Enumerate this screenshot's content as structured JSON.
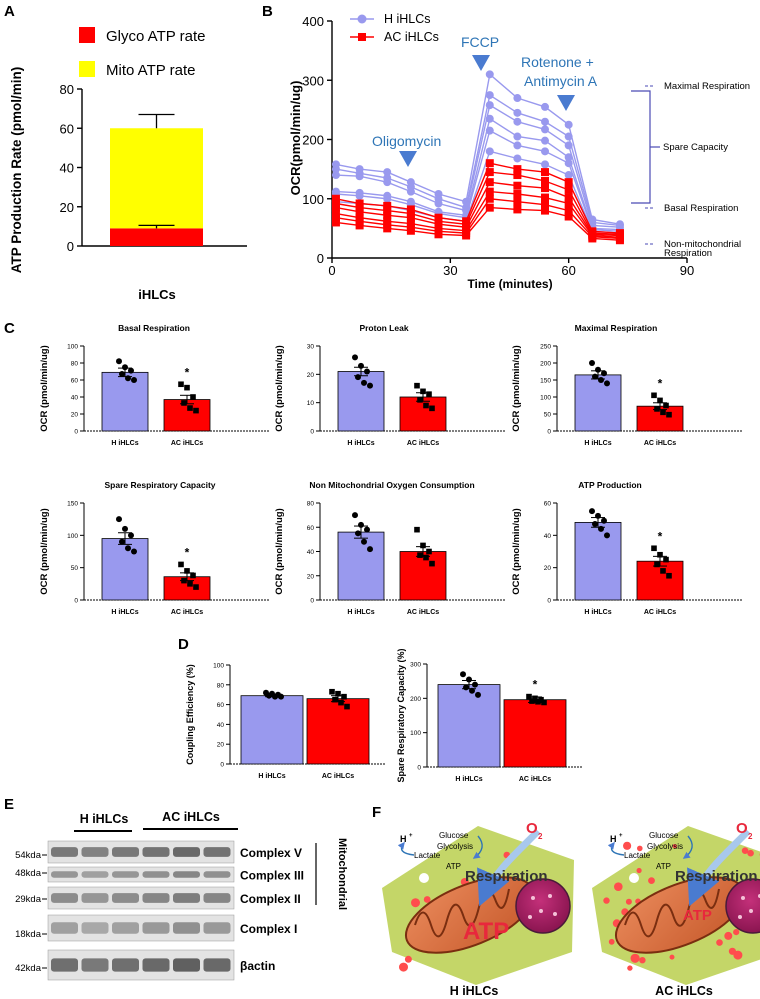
{
  "panels": {
    "a": "A",
    "b": "B",
    "c": "C",
    "d": "D",
    "e": "E",
    "f": "F"
  },
  "colors": {
    "h": "#9999ee",
    "ac": "#ff0000",
    "glyco": "#ff0000",
    "mito": "#ffff00",
    "annot": "#2e75b6"
  },
  "panel_a": {
    "legend": [
      "Glyco ATP rate",
      "Mito ATP rate"
    ],
    "ylabel": "ATP Production Rate (pmol/min)",
    "xlabel": "iHLCs",
    "yticks": [
      "0",
      "20",
      "40",
      "60",
      "80"
    ]
  },
  "panel_b": {
    "legend": [
      "H iHLCs",
      "AC iHLCs"
    ],
    "ylabel": "OCR(pmol/min/ug)",
    "xlabel": "Time (minutes)",
    "yticks": [
      "0",
      "100",
      "200",
      "300",
      "400"
    ],
    "xticks": [
      "0",
      "30",
      "60",
      "90"
    ],
    "injections": [
      "Oligomycin",
      "FCCP",
      "Rotenone +",
      "Antimycin A"
    ],
    "annotations": [
      "Maximal Respiration",
      "Spare Capacity",
      "Basal Respiration",
      "Non-mitochondrial",
      "Respiration"
    ]
  },
  "groups": [
    "H iHLCs",
    "AC iHLCs"
  ],
  "ocr_label": "OCR (pmol/min/ug)",
  "sig": "*",
  "panel_e": {
    "header": [
      "H iHLCs",
      "AC iHLCs"
    ],
    "markers": [
      "54kda",
      "48kda",
      "29kda",
      "18kda",
      "42kda"
    ],
    "bands": [
      "Complex V",
      "Complex III",
      "Complex II",
      "Complex I",
      "βactin"
    ],
    "group_label": "Mitochondrial"
  },
  "panel_f": {
    "cells": [
      {
        "caption": "H iHLCs",
        "atp": "ATP"
      },
      {
        "caption": "AC iHLCs",
        "atp": "ATP"
      }
    ],
    "labels": {
      "h_plus": "H",
      "glucose": "Glucose",
      "glycolysis": "Glycolysis",
      "lactate": "Lactate",
      "atp_small": "ATP",
      "respiration": "Respiration",
      "o2": "O",
      "o2_sub": "2"
    }
  },
  "chart_data": [
    {
      "id": "A",
      "type": "bar",
      "title": "",
      "categories": [
        "iHLCs"
      ],
      "series": [
        {
          "name": "Glyco ATP rate",
          "values": [
            9
          ]
        },
        {
          "name": "Mito ATP rate",
          "values": [
            51
          ]
        }
      ],
      "error": [
        7
      ],
      "xlabel": "iHLCs",
      "ylabel": "ATP Production Rate (pmol/min)",
      "ylim": [
        0,
        80
      ],
      "stacked": true
    },
    {
      "id": "B",
      "type": "line",
      "title": "",
      "x": [
        1,
        7,
        14,
        20,
        27,
        34,
        40,
        47,
        54,
        60,
        66,
        73
      ],
      "series": [
        {
          "name": "H iHLCs",
          "values": [
            158,
            150,
            145,
            128,
            108,
            95,
            310,
            270,
            255,
            225,
            65,
            57
          ]
        },
        {
          "name": "H iHLCs",
          "values": [
            150,
            143,
            135,
            120,
            100,
            85,
            275,
            245,
            230,
            205,
            60,
            55
          ]
        },
        {
          "name": "H iHLCs",
          "values": [
            140,
            138,
            128,
            112,
            92,
            80,
            258,
            230,
            217,
            190,
            55,
            52
          ]
        },
        {
          "name": "H iHLCs",
          "values": [
            112,
            110,
            105,
            95,
            78,
            72,
            235,
            205,
            198,
            170,
            50,
            48
          ]
        },
        {
          "name": "H iHLCs",
          "values": [
            108,
            105,
            100,
            90,
            75,
            68,
            215,
            190,
            180,
            160,
            48,
            45
          ]
        },
        {
          "name": "H iHLCs",
          "values": [
            95,
            92,
            88,
            80,
            68,
            62,
            180,
            168,
            158,
            140,
            45,
            42
          ]
        },
        {
          "name": "AC iHLCs",
          "values": [
            100,
            92,
            88,
            82,
            68,
            62,
            160,
            150,
            145,
            128,
            45,
            42
          ]
        },
        {
          "name": "AC iHLCs",
          "values": [
            92,
            85,
            80,
            75,
            62,
            57,
            145,
            140,
            130,
            115,
            42,
            40
          ]
        },
        {
          "name": "AC iHLCs",
          "values": [
            85,
            78,
            72,
            68,
            57,
            52,
            128,
            122,
            118,
            102,
            40,
            38
          ]
        },
        {
          "name": "AC iHLCs",
          "values": [
            75,
            68,
            62,
            58,
            50,
            46,
            112,
            108,
            102,
            92,
            38,
            35
          ]
        },
        {
          "name": "AC iHLCs",
          "values": [
            68,
            62,
            56,
            52,
            45,
            42,
            100,
            95,
            90,
            80,
            36,
            33
          ]
        },
        {
          "name": "AC iHLCs",
          "values": [
            60,
            55,
            50,
            46,
            40,
            38,
            85,
            82,
            80,
            70,
            33,
            30
          ]
        }
      ],
      "injections_at": [
        20,
        34,
        58
      ],
      "xlabel": "Time (minutes)",
      "ylabel": "OCR(pmol/min/ug)",
      "xlim": [
        0,
        90
      ],
      "ylim": [
        0,
        400
      ]
    },
    {
      "id": "C1",
      "type": "bar",
      "title": "Basal Respiration",
      "categories": [
        "H iHLCs",
        "AC iHLCs"
      ],
      "values": [
        69,
        37
      ],
      "error": [
        5,
        5
      ],
      "significant": [
        false,
        true
      ],
      "points": [
        [
          82,
          75,
          71,
          67,
          62,
          60
        ],
        [
          55,
          51,
          40,
          33,
          27,
          24
        ]
      ],
      "ylabel": "OCR (pmol/min/ug)",
      "ylim": [
        0,
        100
      ],
      "yticks": [
        "0",
        "20",
        "40",
        "60",
        "80",
        "100"
      ]
    },
    {
      "id": "C2",
      "type": "bar",
      "title": "Proton Leak",
      "categories": [
        "H iHLCs",
        "AC iHLCs"
      ],
      "values": [
        21,
        12
      ],
      "error": [
        1.5,
        1.5
      ],
      "significant": [
        false,
        false
      ],
      "points": [
        [
          26,
          23,
          21,
          19,
          17,
          16
        ],
        [
          16,
          14,
          13,
          11,
          9,
          8
        ]
      ],
      "ylabel": "OCR (pmol/min/ug)",
      "ylim": [
        0,
        30
      ],
      "yticks": [
        "0",
        "10",
        "20",
        "30"
      ]
    },
    {
      "id": "C3",
      "type": "bar",
      "title": "Maximal Respiration",
      "categories": [
        "H iHLCs",
        "AC iHLCs"
      ],
      "values": [
        165,
        73
      ],
      "error": [
        12,
        10
      ],
      "significant": [
        false,
        true
      ],
      "points": [
        [
          200,
          180,
          170,
          160,
          150,
          140
        ],
        [
          105,
          90,
          75,
          65,
          55,
          48
        ]
      ],
      "ylabel": "OCR (pmol/min/ug)",
      "ylim": [
        0,
        250
      ],
      "yticks": [
        "0",
        "50",
        "100",
        "150",
        "200",
        "250"
      ]
    },
    {
      "id": "C4",
      "type": "bar",
      "title": "Spare Respiratory Capacity",
      "categories": [
        "H iHLCs",
        "AC iHLCs"
      ],
      "values": [
        95,
        36
      ],
      "error": [
        9,
        6
      ],
      "significant": [
        false,
        true
      ],
      "points": [
        [
          125,
          110,
          100,
          90,
          80,
          75
        ],
        [
          55,
          45,
          38,
          30,
          25,
          20
        ]
      ],
      "ylabel": "OCR (pmol/min/ug)",
      "ylim": [
        0,
        150
      ],
      "yticks": [
        "0",
        "50",
        "100",
        "150"
      ]
    },
    {
      "id": "C5",
      "type": "bar",
      "title": "Non Mitochondrial Oxygen Consumption",
      "categories": [
        "H iHLCs",
        "AC iHLCs"
      ],
      "values": [
        56,
        40
      ],
      "error": [
        5,
        4
      ],
      "significant": [
        false,
        false
      ],
      "points": [
        [
          70,
          62,
          58,
          55,
          48,
          42
        ],
        [
          58,
          45,
          40,
          37,
          35,
          30
        ]
      ],
      "ylabel": "OCR (pmol/min/ug)",
      "ylim": [
        0,
        80
      ],
      "yticks": [
        "0",
        "20",
        "40",
        "60",
        "80"
      ]
    },
    {
      "id": "C6",
      "type": "bar",
      "title": "ATP Production",
      "categories": [
        "H iHLCs",
        "AC iHLCs"
      ],
      "values": [
        48,
        24
      ],
      "error": [
        3,
        3
      ],
      "significant": [
        false,
        true
      ],
      "points": [
        [
          55,
          52,
          49,
          47,
          44,
          40
        ],
        [
          32,
          28,
          25,
          22,
          18,
          15
        ]
      ],
      "ylabel": "OCR (pmol/min/ug)",
      "ylim": [
        0,
        60
      ],
      "yticks": [
        "0",
        "20",
        "40",
        "60"
      ]
    },
    {
      "id": "D1",
      "type": "bar",
      "title": "",
      "categories": [
        "H iHLCs",
        "AC iHLCs"
      ],
      "values": [
        69,
        66
      ],
      "error": [
        1,
        3
      ],
      "significant": [
        false,
        false
      ],
      "points": [
        [
          72,
          71,
          70,
          69,
          68,
          68
        ],
        [
          73,
          71,
          68,
          65,
          62,
          58
        ]
      ],
      "ylabel": "Coupling Efficiency (%)",
      "ylim": [
        0,
        100
      ],
      "yticks": [
        "0",
        "20",
        "40",
        "60",
        "80",
        "100"
      ]
    },
    {
      "id": "D2",
      "type": "bar",
      "title": "",
      "categories": [
        "H iHLCs",
        "AC iHLCs"
      ],
      "values": [
        240,
        196
      ],
      "error": [
        12,
        8
      ],
      "significant": [
        false,
        true
      ],
      "points": [
        [
          270,
          255,
          240,
          232,
          222,
          210
        ],
        [
          205,
          200,
          196,
          192,
          190,
          188
        ]
      ],
      "ylabel": "Spare Respiratory Capacity (%)",
      "ylim": [
        0,
        300
      ],
      "yticks": [
        "0",
        "100",
        "200",
        "300"
      ]
    }
  ]
}
